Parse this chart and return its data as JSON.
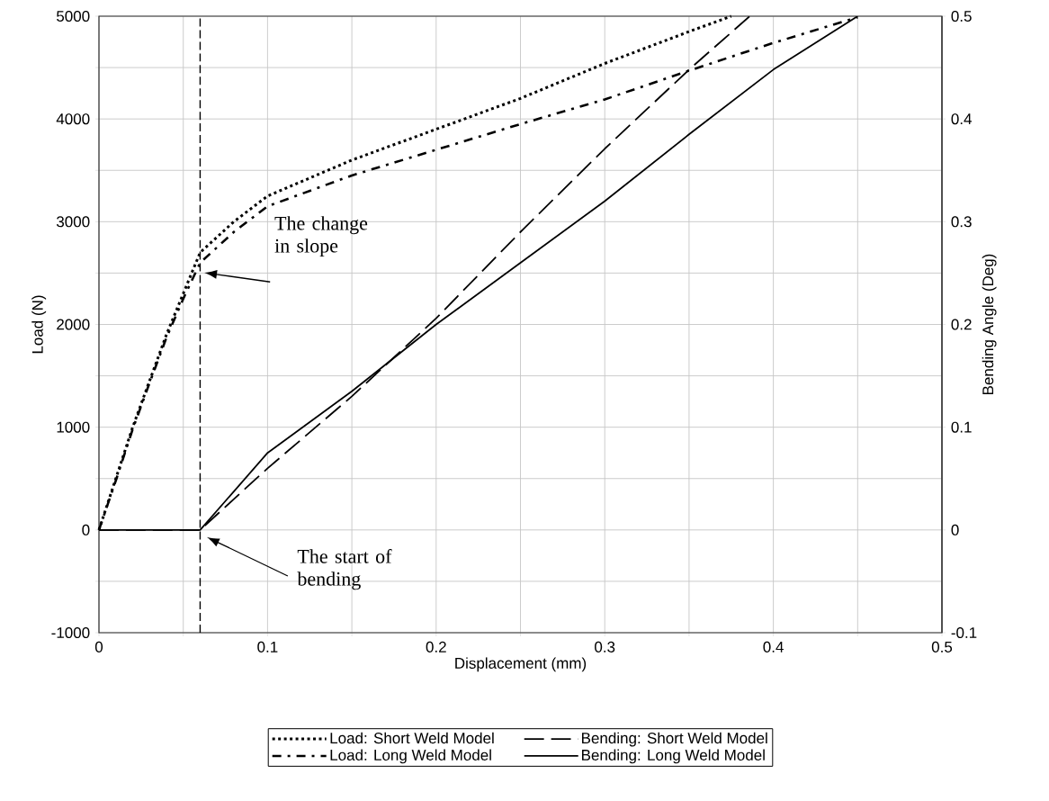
{
  "chart_data": {
    "type": "line",
    "xlabel": "Displacement (mm)",
    "ylabel": "Load (N)",
    "y2label": "Bending Angle (Deg)",
    "xlim": [
      0,
      0.5
    ],
    "ylim": [
      -1000,
      5000
    ],
    "y2lim": [
      -0.1,
      0.5
    ],
    "xticks": [
      0,
      {
        "value": 0.05,
        "label": null
      },
      0.1,
      {
        "value": 0.15,
        "label": null
      },
      0.2,
      {
        "value": 0.25,
        "label": null
      },
      0.3,
      {
        "value": 0.35,
        "label": null
      },
      0.4,
      {
        "value": 0.45,
        "label": null
      },
      0.5
    ],
    "yticks": [
      -1000,
      {
        "value": -500,
        "label": null
      },
      0,
      {
        "value": 500,
        "label": null
      },
      1000,
      {
        "value": 1500,
        "label": null
      },
      2000,
      {
        "value": 2500,
        "label": null
      },
      3000,
      {
        "value": 3500,
        "label": null
      },
      4000,
      {
        "value": 4500,
        "label": null
      },
      5000
    ],
    "y2ticks": [
      -0.1,
      0,
      0.1,
      0.2,
      0.3,
      0.4,
      0.5
    ],
    "grid": true,
    "legend": "bottom",
    "marker": "none",
    "series": [
      {
        "name": "Load: Short Weld Model",
        "color": "#000000",
        "line_style": "dotted",
        "x": [
          0,
          0.01,
          0.02,
          0.03,
          0.04,
          0.05,
          0.06,
          0.07,
          0.08,
          0.1,
          0.15,
          0.2,
          0.25,
          0.3,
          0.35,
          0.375
        ],
        "values": [
          0,
          500,
          1000,
          1450,
          1900,
          2300,
          2700,
          2850,
          3000,
          3250,
          3600,
          3900,
          4200,
          4540,
          4850,
          5000
        ]
      },
      {
        "name": "Load: Long Weld Model",
        "color": "#000000",
        "line_style": "dashdotted",
        "x": [
          0,
          0.01,
          0.02,
          0.03,
          0.04,
          0.05,
          0.06,
          0.08,
          0.1,
          0.15,
          0.2,
          0.25,
          0.3,
          0.35,
          0.4,
          0.45
        ],
        "values": [
          0,
          480,
          980,
          1430,
          1870,
          2250,
          2600,
          2900,
          3150,
          3450,
          3700,
          3950,
          4190,
          4470,
          4740,
          4990
        ]
      },
      {
        "name": "Bending: Short Weld Model",
        "color": "#000000",
        "line_style": "dashed",
        "axis": "y2",
        "x": [
          0,
          0.06,
          0.1,
          0.15,
          0.2,
          0.25,
          0.3,
          0.35,
          0.386
        ],
        "values": [
          0,
          0,
          0.06,
          0.13,
          0.206,
          0.29,
          0.371,
          0.448,
          0.5
        ]
      },
      {
        "name": "Bending: Long Weld Model",
        "color": "#000000",
        "line_style": "solid",
        "axis": "y2",
        "x": [
          0,
          0.06,
          0.1,
          0.15,
          0.2,
          0.25,
          0.3,
          0.35,
          0.4,
          0.45
        ],
        "values": [
          0,
          0,
          0.075,
          0.135,
          0.2,
          0.26,
          0.32,
          0.385,
          0.448,
          0.5
        ]
      }
    ],
    "ref_lines": [
      {
        "axis": "x",
        "value": 0.06,
        "line_style": "dashed",
        "color": "#000000"
      }
    ],
    "annotations": [
      "The change in slope",
      "The start of bending"
    ]
  }
}
